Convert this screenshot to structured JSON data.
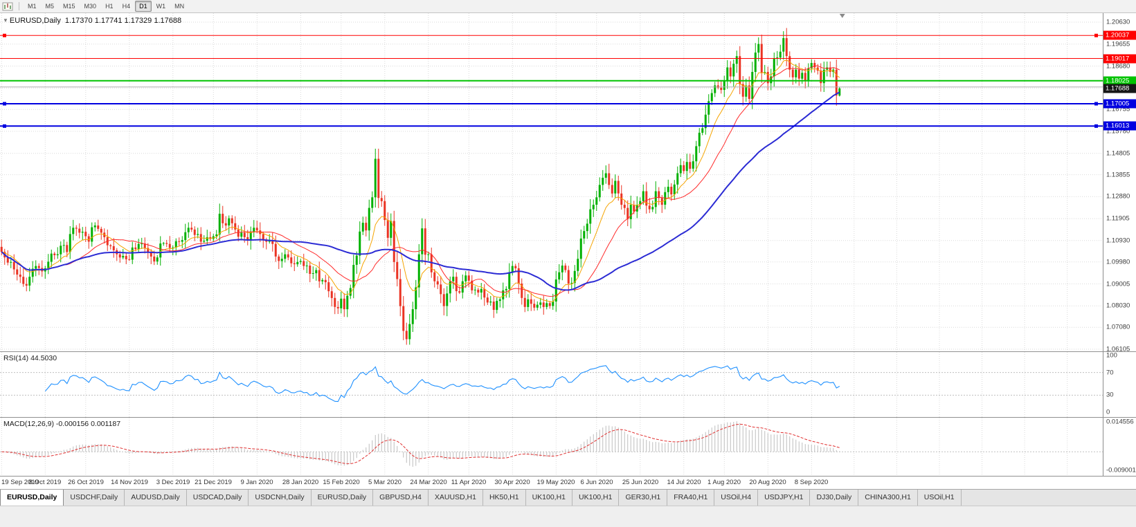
{
  "toolbar": {
    "timeframes": [
      "M1",
      "M5",
      "M15",
      "M30",
      "H1",
      "H4",
      "D1",
      "W1",
      "MN"
    ],
    "active_timeframe": "D1"
  },
  "chart": {
    "info_symbol": "EURUSD,Daily",
    "info_ohlc": "1.17370 1.17741 1.17329 1.17688"
  },
  "chart_data": {
    "type": "candlestick",
    "symbol": "EURUSD",
    "timeframe": "Daily",
    "ohlc_display": {
      "open": "1.17370",
      "high": "1.17741",
      "low": "1.17329",
      "close": "1.17688"
    },
    "candle_spacing": 4.5,
    "first_open": 1.1065,
    "scale": {
      "p_top": 1.2103,
      "p_bottom": 1.0601
    },
    "price_axis_ticks": [
      "1.20630",
      "1.19655",
      "1.18680",
      "1.17705",
      "1.16755",
      "1.15780",
      "1.14805",
      "1.13855",
      "1.12880",
      "1.11905",
      "1.10930",
      "1.09980",
      "1.09005",
      "1.08030",
      "1.07080",
      "1.06105"
    ],
    "time_axis": {
      "labels": [
        "19 Sep 2019",
        "8 Oct 2019",
        "26 Oct 2019",
        "14 Nov 2019",
        "3 Dec 2019",
        "21 Dec 2019",
        "9 Jan 2020",
        "28 Jan 2020",
        "15 Feb 2020",
        "5 Mar 2020",
        "24 Mar 2020",
        "11 Apr 2020",
        "30 Apr 2020",
        "19 May 2020",
        "6 Jun 2020",
        "25 Jun 2020",
        "14 Jul 2020",
        "1 Aug 2020",
        "20 Aug 2020",
        "8 Sep 2020"
      ],
      "indices": [
        0,
        14,
        27,
        41,
        55,
        68,
        82,
        96,
        109,
        123,
        137,
        150,
        164,
        178,
        191,
        205,
        219,
        232,
        246,
        260
      ]
    },
    "closes": [
      1.1043,
      1.1018,
      1.0995,
      1.0998,
      1.0965,
      1.0942,
      1.0932,
      1.09,
      1.0893,
      1.0932,
      1.0968,
      1.098,
      1.0971,
      1.0956,
      1.097,
      1.0999,
      1.1035,
      1.1028,
      1.1032,
      1.107,
      1.1073,
      1.1042,
      1.1122,
      1.115,
      1.1146,
      1.1128,
      1.1132,
      1.1112,
      1.1088,
      1.1152,
      1.116,
      1.1145,
      1.1128,
      1.1108,
      1.1072,
      1.1068,
      1.105,
      1.1032,
      1.1018,
      1.1025,
      1.101,
      1.1008,
      1.1062,
      1.1055,
      1.1078,
      1.108,
      1.106,
      1.104,
      1.1022,
      1.1,
      1.1018,
      1.108,
      1.1082,
      1.1078,
      1.106,
      1.1062,
      1.109,
      1.1088,
      1.1095,
      1.113,
      1.115,
      1.1142,
      1.1118,
      1.1122,
      1.1088,
      1.1092,
      1.1108,
      1.11,
      1.1112,
      1.112,
      1.1212,
      1.117,
      1.116,
      1.1192,
      1.117,
      1.1142,
      1.111,
      1.1128,
      1.1108,
      1.1092,
      1.1132,
      1.115,
      1.1138,
      1.1122,
      1.1098,
      1.1088,
      1.1095,
      1.1078,
      1.1022,
      1.1002,
      1.1012,
      1.1032,
      1.1018,
      1.0992,
      1.0988,
      1.0998,
      1.1002,
      1.098,
      1.0982,
      1.0945,
      1.0948,
      1.0962,
      1.0912,
      1.0918,
      1.0908,
      1.0868,
      1.0838,
      1.0798,
      1.0792,
      1.0835,
      1.0788,
      1.0848,
      1.0882,
      1.0985,
      1.1026,
      1.1133,
      1.1172,
      1.1138,
      1.1238,
      1.1285,
      1.1456,
      1.1282,
      1.1268,
      1.1184,
      1.1105,
      1.118,
      1.0998,
      1.0922,
      1.0802,
      1.0692,
      1.0655,
      1.0722,
      1.0788,
      1.0885,
      1.1032,
      1.1147,
      1.103,
      1.1032,
      1.0952,
      1.0912,
      1.0898,
      1.0855,
      1.0802,
      1.0858,
      1.0912,
      1.0932,
      1.0868,
      1.0862,
      1.0912,
      1.0938,
      1.0915,
      1.0872,
      1.0875,
      1.0862,
      1.0878,
      1.084,
      1.0818,
      1.0822,
      1.0785,
      1.0825,
      1.0832,
      1.0872,
      1.0878,
      1.0952,
      1.098,
      1.097,
      1.0902,
      1.0838,
      1.0798,
      1.0832,
      1.0812,
      1.0795,
      1.0808,
      1.0818,
      1.0798,
      1.0815,
      1.0802,
      1.0822,
      1.092,
      1.0952,
      1.0982,
      1.0962,
      1.0902,
      1.0905,
      1.0958,
      1.1012,
      1.1102,
      1.1135,
      1.1168,
      1.1232,
      1.1252,
      1.1285,
      1.134,
      1.1372,
      1.1392,
      1.134,
      1.1302,
      1.1358,
      1.1302,
      1.1252,
      1.1238,
      1.1188,
      1.1252,
      1.1222,
      1.1252,
      1.1268,
      1.1312,
      1.1248,
      1.1232,
      1.1242,
      1.1312,
      1.1282,
      1.1252,
      1.1308,
      1.1332,
      1.1298,
      1.1342,
      1.1392,
      1.1428,
      1.1402,
      1.1442,
      1.1412,
      1.1445,
      1.1512,
      1.1572,
      1.1592,
      1.1652,
      1.1712,
      1.1748,
      1.1782,
      1.1772,
      1.1762,
      1.1802,
      1.1862,
      1.1822,
      1.1878,
      1.1912,
      1.1788,
      1.1732,
      1.1782,
      1.1722,
      1.1842,
      1.1928,
      1.1966,
      1.1838,
      1.1842,
      1.1792,
      1.1822,
      1.1902,
      1.1906,
      1.1932,
      1.1992,
      1.1912,
      1.1852,
      1.1818,
      1.1852,
      1.1812,
      1.1838,
      1.1802,
      1.1858,
      1.1882,
      1.1862,
      1.1848,
      1.1792,
      1.1852,
      1.1862,
      1.1842,
      1.1852,
      1.1737,
      1.17688
    ],
    "last_candle": {
      "open": 1.1737,
      "high": 1.17741,
      "low": 1.17329,
      "close": 1.17688
    },
    "hlines": [
      {
        "price": 1.20037,
        "label": "1.20037",
        "color": "#ff0000",
        "width": 1,
        "markers": true
      },
      {
        "price": 1.19017,
        "label": "1.19017",
        "color": "#ff0000",
        "width": 1,
        "markers": false
      },
      {
        "price": 1.18025,
        "label": "1.18025",
        "color": "#00c300",
        "width": 2,
        "markers": false
      },
      {
        "price": 1.1775,
        "label": "",
        "color": "#b0b0b0",
        "width": 1,
        "markers": false
      },
      {
        "price": 1.17005,
        "label": "1.17005",
        "color": "#0000e0",
        "width": 2,
        "markers": true
      },
      {
        "price": 1.16013,
        "label": "1.16013",
        "color": "#0000e0",
        "width": 2,
        "markers": true
      }
    ],
    "current_price": {
      "value": 1.17688,
      "label": "1.17688"
    },
    "mas": [
      {
        "type": "ema",
        "period": 10,
        "color": "#f5a400",
        "width": 1
      },
      {
        "type": "sma",
        "period": 21,
        "color": "#ff2a2a",
        "width": 1
      },
      {
        "type": "sma",
        "period": 55,
        "color": "#2b2bd4",
        "width": 2
      }
    ],
    "colors": {
      "up": "#00b000",
      "down": "#ea3323",
      "macd_hist": "#bdbdbd",
      "macd_signal": "#e03030"
    }
  },
  "rsi": {
    "label": "RSI(14) 44.5030",
    "period": 14,
    "value": "44.5030",
    "levels": [
      70,
      30
    ],
    "color": "#1e90ff",
    "axis": [
      {
        "text": "100",
        "value": 100
      },
      {
        "text": "70",
        "value": 70
      },
      {
        "text": "30",
        "value": 30
      },
      {
        "text": "0",
        "value": 0
      }
    ]
  },
  "macd": {
    "label": "MACD(12,26,9) -0.000156 0.001187",
    "fast": 12,
    "slow": 26,
    "signal": 9,
    "value_main": "-0.000156",
    "value_signal": "0.001187",
    "axis": [
      {
        "text": "0.014556",
        "value": 0.014556
      },
      {
        "text": "-0.009001",
        "value": -0.009001
      }
    ]
  },
  "tabs": {
    "items": [
      {
        "label": "EURUSD,Daily",
        "active": true
      },
      {
        "label": "USDCHF,Daily",
        "active": false
      },
      {
        "label": "AUDUSD,Daily",
        "active": false
      },
      {
        "label": "USDCAD,Daily",
        "active": false
      },
      {
        "label": "USDCNH,Daily",
        "active": false
      },
      {
        "label": "EURUSD,Daily",
        "active": false
      },
      {
        "label": "GBPUSD,H4",
        "active": false
      },
      {
        "label": "XAUUSD,H1",
        "active": false
      },
      {
        "label": "HK50,H1",
        "active": false
      },
      {
        "label": "UK100,H1",
        "active": false
      },
      {
        "label": "UK100,H1",
        "active": false
      },
      {
        "label": "GER30,H1",
        "active": false
      },
      {
        "label": "FRA40,H1",
        "active": false
      },
      {
        "label": "USOil,H4",
        "active": false
      },
      {
        "label": "USDJPY,H1",
        "active": false
      },
      {
        "label": "DJ30,Daily",
        "active": false
      },
      {
        "label": "CHINA300,H1",
        "active": false
      },
      {
        "label": "USOil,H1",
        "active": false
      }
    ]
  }
}
